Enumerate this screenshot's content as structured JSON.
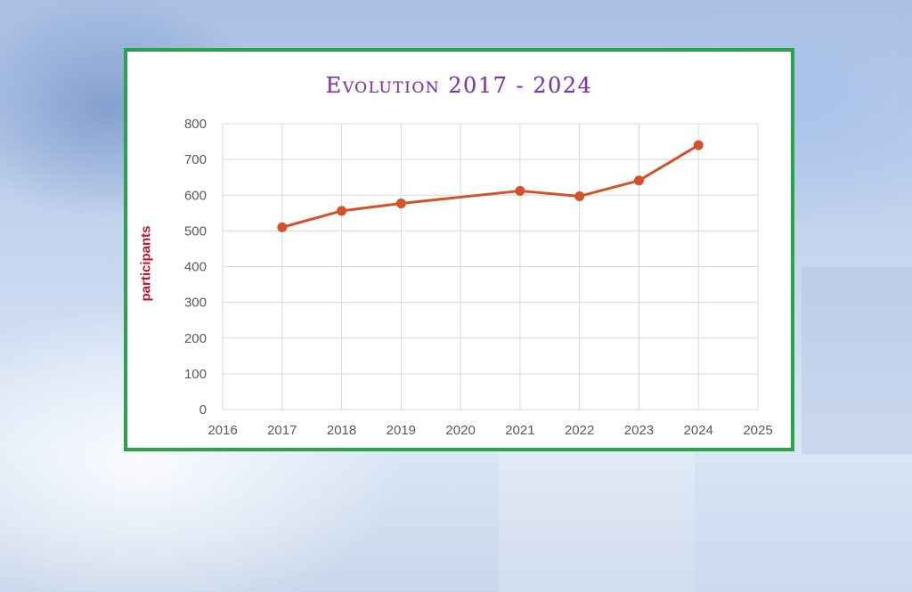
{
  "chart_data": {
    "type": "line",
    "title": "Evolution 2017 - 2024",
    "xlabel": "",
    "ylabel": "participants",
    "xlim": [
      2016,
      2025
    ],
    "ylim": [
      0,
      800
    ],
    "xticks": [
      2016,
      2017,
      2018,
      2019,
      2020,
      2021,
      2022,
      2023,
      2024,
      2025
    ],
    "yticks": [
      0,
      100,
      200,
      300,
      400,
      500,
      600,
      700,
      800
    ],
    "grid": true,
    "legend": "none",
    "series": [
      {
        "color": "#d4522a",
        "x": [
          2017,
          2018,
          2019,
          2021,
          2022,
          2023,
          2024
        ],
        "y": [
          510,
          556,
          577,
          612,
          597,
          641,
          740
        ]
      }
    ]
  },
  "colors": {
    "frame": "#28a44a",
    "title": "#7b3aa0",
    "ylabel": "#c0172c",
    "grid": "#d9d9d9"
  }
}
